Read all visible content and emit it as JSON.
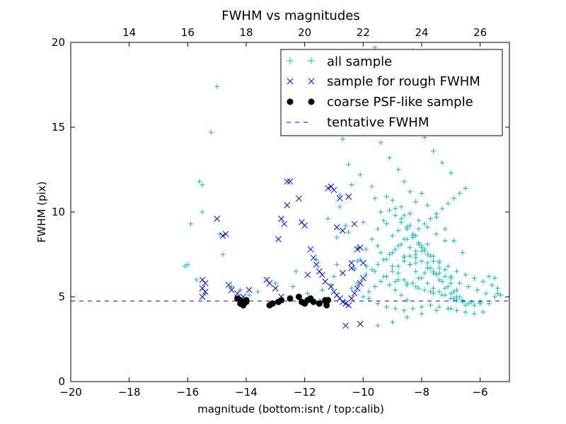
{
  "chart_data": {
    "type": "scatter",
    "title": "FWHM vs magnitudes",
    "xlabel": "magnitude (bottom:isnt / top:calib)",
    "ylabel": "FWHM (pix)",
    "xlim": [
      -20,
      -5
    ],
    "ylim": [
      0,
      20
    ],
    "x_ticks": [
      -20,
      -18,
      -16,
      -14,
      -12,
      -10,
      -8,
      -6
    ],
    "x_tick_labels": [
      "−20",
      "−18",
      "−16",
      "−14",
      "−12",
      "−10",
      "−8",
      "−6"
    ],
    "y_ticks": [
      0,
      5,
      10,
      15,
      20
    ],
    "y_tick_labels": [
      "0",
      "5",
      "10",
      "15",
      "20"
    ],
    "top_axis": {
      "offset": 32,
      "ticks": [
        14,
        16,
        18,
        20,
        22,
        24,
        26
      ],
      "tick_labels": [
        "14",
        "16",
        "18",
        "20",
        "22",
        "24",
        "26"
      ]
    },
    "grid": false,
    "legend_position": "top-right",
    "colors": {
      "all_sample": "#00bfbf",
      "rough": "#0000ff",
      "psf": "#000000",
      "fwhm_line": "#0000ff"
    },
    "series": [
      {
        "name": "all sample",
        "marker": "plus",
        "points_x": [
          -15.2,
          -15.0,
          -15.6,
          -15.5,
          -15.5,
          -15.9,
          -16.1,
          -16.0,
          -15.7,
          -14.9,
          -14.8,
          -15.4,
          -14.5,
          -14.2,
          -13.9,
          -13.6,
          -12.8,
          -12.4,
          -11.9,
          -11.4,
          -11.0,
          -10.9,
          -10.8,
          -10.4,
          -10.1,
          -10.7,
          -10.5,
          -11.2,
          -11.6,
          -12.3,
          -13.0,
          -14.0,
          -10.2,
          -10.6,
          -10.8,
          -11.1,
          -10.3,
          -10.9,
          -10.5,
          -10.0,
          -9.6,
          -9.3,
          -9.0,
          -8.7,
          -8.5,
          -8.3,
          -8.1,
          -7.9,
          -7.6,
          -7.3,
          -7.0,
          -9.8,
          -9.4,
          -9.1,
          -8.8,
          -8.6,
          -8.4,
          -8.2,
          -8.0,
          -7.8,
          -7.5,
          -7.2,
          -6.9,
          -6.6,
          -9.7,
          -9.2,
          -8.9,
          -8.7,
          -8.5,
          -8.3,
          -8.1,
          -7.9,
          -7.7,
          -7.4,
          -7.1,
          -6.8,
          -6.5,
          -6.2,
          -5.9,
          -5.6,
          -5.4,
          -9.5,
          -9.0,
          -8.6,
          -8.2,
          -7.8,
          -7.4,
          -7.0,
          -6.7,
          -6.4,
          -6.1,
          -5.8,
          -5.5,
          -5.3,
          -10.2,
          -9.9,
          -9.6,
          -9.3,
          -8.9,
          -8.5,
          -8.1,
          -7.7,
          -7.3,
          -6.9,
          -6.6,
          -6.3,
          -6.0,
          -5.7,
          -8.8,
          -8.6,
          -8.4,
          -8.2,
          -8.0,
          -7.8,
          -7.6,
          -7.9,
          -8.1,
          -8.3,
          -8.5,
          -8.7,
          -8.9,
          -9.1,
          -9.3,
          -9.5,
          -9.7,
          -9.9,
          -10.1,
          -10.3,
          -8.4,
          -8.2,
          -8.0,
          -7.8,
          -7.6,
          -7.4,
          -7.2,
          -7.0,
          -8.6,
          -8.8,
          -9.0,
          -9.2,
          -9.4,
          -8.3,
          -8.1,
          -7.9,
          -7.7,
          -7.5,
          -7.3,
          -7.1,
          -6.9,
          -6.7,
          -8.5,
          -8.7,
          -8.9,
          -9.1,
          -8.0,
          -7.8,
          -7.6,
          -7.4,
          -8.2,
          -8.4,
          -8.6,
          -7.2,
          -7.0,
          -6.8,
          -9.8,
          -9.5,
          -9.2,
          -8.9,
          -8.6,
          -8.3,
          -8.0,
          -7.7,
          -7.4,
          -7.1,
          -6.8,
          -6.5,
          -6.2,
          -5.9,
          -9.0,
          -8.7,
          -8.4,
          -8.1,
          -7.8,
          -7.5,
          -7.2,
          -8.8,
          -8.5,
          -8.2,
          -7.9,
          -7.6,
          -9.6,
          -9.4,
          -9.2,
          -9.0,
          -8.8,
          -8.6,
          -8.4,
          -8.2,
          -8.0,
          -7.8,
          -7.6,
          -7.4,
          -7.2,
          -7.0,
          -6.8,
          -6.6,
          -6.4,
          -6.2,
          -9.9,
          -9.7,
          -9.5,
          -9.3,
          -9.1,
          -8.9,
          -8.7,
          -8.5,
          -8.3,
          -8.1,
          -7.9,
          -7.7,
          -7.5,
          -7.3,
          -7.1,
          -6.9,
          -6.7,
          -6.5,
          -10.0,
          -9.8,
          -9.6,
          -9.4,
          -9.2,
          -9.0,
          -8.8,
          -8.6,
          -8.4,
          -8.2,
          -8.0,
          -7.8,
          -7.6,
          -7.4,
          -7.2,
          -7.0,
          -6.8,
          -10.4,
          -10.2,
          -9.5,
          -9.0,
          -8.5,
          -8.0,
          -7.5,
          -7.0,
          -6.5,
          -6.0,
          -5.7,
          -5.5,
          -5.4
        ],
        "points_y": [
          14.7,
          17.4,
          11.8,
          11.6,
          10.0,
          9.3,
          6.8,
          6.9,
          6.0,
          8.7,
          7.5,
          5.2,
          5.6,
          5.4,
          5.1,
          5.3,
          4.9,
          5.6,
          5.2,
          5.4,
          6.2,
          8.5,
          11.0,
          11.6,
          12.2,
          14.3,
          12.8,
          9.6,
          7.2,
          6.5,
          5.8,
          4.8,
          7.9,
          9.2,
          10.3,
          5.7,
          6.7,
          6.9,
          8.8,
          9.4,
          19.7,
          18.2,
          16.9,
          15.8,
          16.5,
          19.5,
          17.1,
          14.4,
          13.6,
          12.9,
          12.3,
          15.2,
          14.1,
          13.2,
          12.5,
          11.8,
          11.2,
          10.6,
          11.1,
          10.4,
          9.7,
          9.0,
          8.3,
          7.6,
          11.5,
          10.9,
          10.2,
          9.6,
          9.1,
          8.6,
          8.2,
          7.8,
          7.4,
          7.1,
          6.8,
          6.5,
          6.3,
          6.1,
          5.9,
          5.7,
          5.5,
          8.0,
          7.6,
          7.3,
          7.0,
          6.7,
          6.4,
          6.1,
          5.8,
          5.6,
          5.4,
          5.2,
          5.0,
          5.1,
          7.1,
          6.8,
          6.5,
          6.2,
          5.9,
          5.7,
          5.5,
          5.3,
          5.1,
          4.9,
          4.8,
          4.7,
          4.6,
          4.6,
          8.9,
          8.4,
          7.9,
          7.5,
          7.1,
          6.7,
          6.4,
          7.7,
          8.1,
          8.5,
          9.0,
          9.4,
          9.8,
          10.1,
          9.5,
          9.0,
          8.4,
          7.8,
          7.2,
          6.6,
          6.9,
          7.3,
          7.7,
          8.1,
          7.4,
          7.0,
          6.6,
          6.2,
          6.0,
          6.4,
          6.8,
          7.2,
          7.6,
          5.8,
          6.1,
          6.4,
          6.7,
          6.3,
          5.9,
          5.6,
          5.3,
          5.0,
          4.8,
          5.1,
          5.4,
          5.7,
          7.9,
          7.5,
          7.1,
          6.7,
          8.6,
          9.2,
          9.8,
          6.2,
          5.8,
          5.4,
          4.9,
          4.6,
          4.4,
          4.3,
          4.2,
          4.3,
          4.4,
          4.5,
          4.4,
          4.3,
          4.2,
          4.1,
          4.0,
          4.1,
          10.7,
          10.3,
          9.9,
          9.5,
          9.1,
          8.7,
          8.3,
          6.0,
          5.8,
          5.6,
          5.4,
          5.2,
          10.8,
          10.0,
          9.3,
          8.6,
          8.0,
          7.4,
          6.9,
          6.5,
          6.1,
          5.8,
          5.5,
          5.3,
          5.1,
          4.9,
          4.8,
          4.7,
          4.6,
          4.5,
          6.3,
          6.6,
          6.9,
          7.2,
          7.5,
          7.8,
          8.1,
          8.4,
          8.7,
          9.0,
          9.3,
          9.6,
          9.9,
          10.2,
          10.5,
          10.8,
          11.1,
          11.4,
          5.0,
          5.3,
          5.6,
          5.9,
          6.2,
          6.5,
          6.8,
          7.1,
          7.4,
          7.7,
          8.0,
          7.0,
          6.5,
          6.0,
          5.5,
          5.2,
          5.0,
          5.5,
          5.8,
          3.3,
          3.5,
          3.8,
          4.0,
          4.2,
          4.3,
          4.5,
          4.7,
          6.2,
          6.1,
          5.2,
          3.6
        ]
      },
      {
        "name": "sample for rough FWHM",
        "marker": "x",
        "points_x": [
          -15.0,
          -14.8,
          -14.7,
          -15.5,
          -15.4,
          -15.5,
          -15.4,
          -15.5,
          -14.6,
          -14.5,
          -14.3,
          -14.1,
          -13.9,
          -13.3,
          -13.2,
          -13.0,
          -12.8,
          -12.7,
          -12.6,
          -12.5,
          -12.9,
          -12.2,
          -12.1,
          -12.0,
          -11.8,
          -11.7,
          -11.6,
          -11.5,
          -11.4,
          -11.3,
          -11.1,
          -11.0,
          -10.9,
          -10.8,
          -10.7,
          -10.6,
          -10.5,
          -10.4,
          -10.3,
          -10.2,
          -10.1,
          -10.0,
          -11.9,
          -11.2,
          -10.9,
          -10.7,
          -10.4,
          -10.2,
          -12.6,
          -12.8,
          -11.8,
          -11.4,
          -10.6
        ],
        "points_y": [
          9.6,
          8.6,
          8.7,
          6.0,
          5.8,
          5.5,
          5.3,
          5.0,
          5.7,
          5.4,
          5.2,
          5.0,
          5.4,
          6.0,
          5.8,
          5.5,
          9.6,
          9.3,
          11.8,
          11.8,
          8.4,
          10.8,
          9.4,
          9.2,
          7.8,
          7.3,
          6.9,
          6.5,
          6.3,
          5.9,
          5.6,
          5.3,
          5.1,
          4.9,
          4.7,
          4.6,
          4.5,
          4.9,
          5.2,
          5.5,
          5.8,
          6.1,
          6.3,
          11.4,
          9.1,
          8.9,
          7.0,
          7.8,
          10.4,
          5.0,
          4.8,
          4.7,
          3.3
        ],
        "extra": [
          [
            -11.1,
            11.5
          ],
          [
            -11.0,
            11.3
          ],
          [
            -10.8,
            10.8
          ],
          [
            -10.5,
            10.9
          ],
          [
            -10.3,
            9.3
          ],
          [
            -10.1,
            7.9
          ],
          [
            -10.0,
            7.0
          ],
          [
            -10.7,
            6.4
          ],
          [
            -10.4,
            6.7
          ],
          [
            -10.1,
            3.4
          ]
        ]
      },
      {
        "name": "coarse PSF-like sample",
        "marker": "dot",
        "points_x": [
          -14.3,
          -14.2,
          -14.1,
          -14.0,
          -14.0,
          -14.2,
          -13.2,
          -13.1,
          -12.9,
          -12.8,
          -12.5,
          -12.2,
          -12.1,
          -12.0,
          -11.9,
          -11.8,
          -11.7,
          -11.5,
          -11.3,
          -11.25,
          -11.2,
          -14.1
        ],
        "points_y": [
          4.9,
          4.6,
          4.5,
          4.7,
          4.8,
          4.8,
          4.5,
          4.6,
          4.7,
          4.8,
          4.9,
          5.0,
          4.7,
          4.6,
          4.8,
          4.9,
          4.7,
          4.6,
          4.8,
          4.5,
          4.8,
          4.55
        ]
      }
    ],
    "reference_line": {
      "name": "tentative FWHM",
      "y": 4.75,
      "style": "dashed"
    }
  }
}
